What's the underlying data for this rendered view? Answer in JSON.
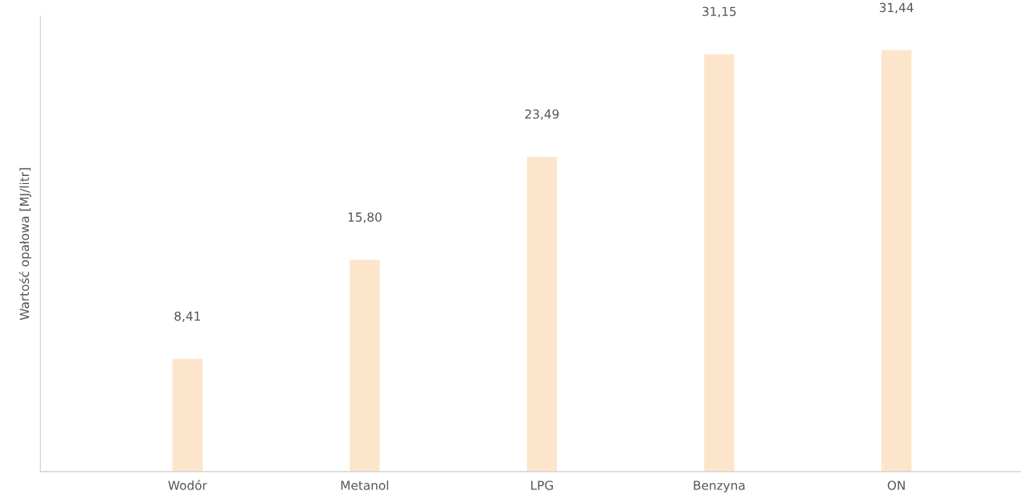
{
  "chart_data": {
    "type": "bar",
    "ylabel": "Wartość opałowa [MJ/litr]",
    "categories": [
      "Wodór",
      "Metanol",
      "LPG",
      "Benzyna",
      "ON"
    ],
    "values": [
      8.41,
      15.8,
      23.49,
      31.15,
      31.44
    ],
    "value_labels": [
      "8,41",
      "15,80",
      "23,49",
      "31,15",
      "31,44"
    ],
    "color": "#fde5cc",
    "ylim": [
      0,
      34
    ],
    "tick_labels": "x",
    "grid": false,
    "legend": false
  }
}
